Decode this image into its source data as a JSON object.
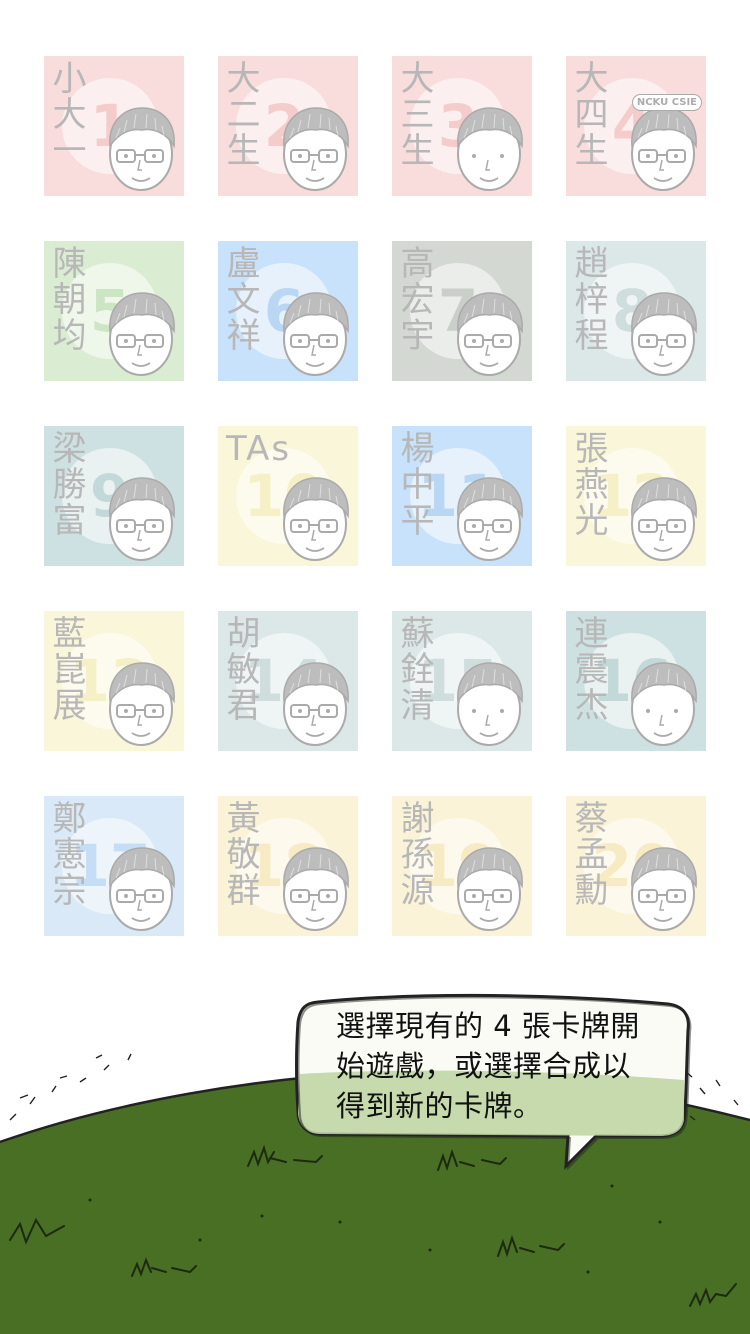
{
  "cards": [
    {
      "name": "小大一",
      "number": "1",
      "bg": "#f0a4a4",
      "numColor": "#e57b7b"
    },
    {
      "name": "大二生",
      "number": "2",
      "bg": "#f0a4a4",
      "numColor": "#e57b7b"
    },
    {
      "name": "大三生",
      "number": "3",
      "bg": "#f0a4a4",
      "numColor": "#e57b7b"
    },
    {
      "name": "大四生",
      "number": "4",
      "bg": "#f0a4a4",
      "numColor": "#e57b7b",
      "cap_text": "NCKU CSIE"
    },
    {
      "name": "陳朝均",
      "number": "5",
      "bg": "#9fd28a",
      "numColor": "#7cbf63"
    },
    {
      "name": "盧文祥",
      "number": "6",
      "bg": "#6fb4f2",
      "numColor": "#4a98e2"
    },
    {
      "name": "高宏宇",
      "number": "7",
      "bg": "#8f9a8a",
      "numColor": "#778374"
    },
    {
      "name": "趙梓程",
      "number": "8",
      "bg": "#a6c2c2",
      "numColor": "#86a8a8"
    },
    {
      "name": "梁勝富",
      "number": "9",
      "bg": "#80b2b4",
      "numColor": "#639a9c"
    },
    {
      "name": "TAs",
      "number": "10",
      "bg": "#f4ea9c",
      "numColor": "#e8d86c"
    },
    {
      "name": "楊中平",
      "number": "11",
      "bg": "#6fb4f2",
      "numColor": "#4a98e2"
    },
    {
      "name": "張燕光",
      "number": "12",
      "bg": "#f4ea9c",
      "numColor": "#e8d86c"
    },
    {
      "name": "藍崑展",
      "number": "13",
      "bg": "#f4ea9c",
      "numColor": "#e8d86c"
    },
    {
      "name": "胡敏君",
      "number": "14",
      "bg": "#a6c2c2",
      "numColor": "#86a8a8"
    },
    {
      "name": "蘇銓清",
      "number": "15",
      "bg": "#a6c2c2",
      "numColor": "#86a8a8"
    },
    {
      "name": "連震杰",
      "number": "16",
      "bg": "#80b2b4",
      "numColor": "#639a9c"
    },
    {
      "name": "鄭憲宗",
      "number": "17",
      "bg": "#9cc8ee",
      "numColor": "#6aaae6"
    },
    {
      "name": "黃敬群",
      "number": "18",
      "bg": "#f6e09a",
      "numColor": "#eccb64"
    },
    {
      "name": "謝孫源",
      "number": "19",
      "bg": "#f6e09a",
      "numColor": "#eccb64"
    },
    {
      "name": "蔡孟勳",
      "number": "20",
      "bg": "#f6e09a",
      "numColor": "#eccb64"
    }
  ],
  "bubble": {
    "text": "選擇現有的 4 張卡牌開始遊戲，或選擇合成以得到新的卡牌。"
  },
  "colors": {
    "grass": "#496f24",
    "grass_highlight": "#bcd4a0",
    "bubble_fill": "#fbfbf6",
    "outline": "#222222"
  }
}
